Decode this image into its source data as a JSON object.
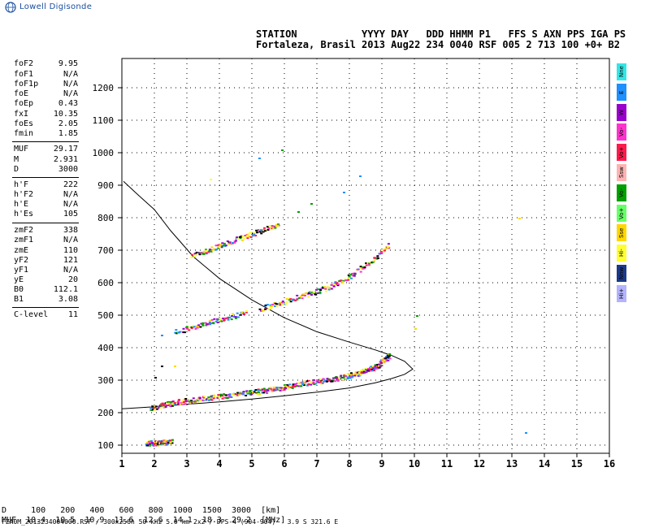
{
  "logo_text": "Lowell Digisonde",
  "header": {
    "labels": "STATION           YYYY DAY   DDD HHMM P1   FFS S AXN PPS IGA PS",
    "values": "Fortaleza, Brasil 2013 Aug22 234 0040 RSF 005 2 713 100 +0+ B2"
  },
  "params": [
    {
      "k": "foF2",
      "v": "9.95"
    },
    {
      "k": "foF1",
      "v": "N/A"
    },
    {
      "k": "foF1p",
      "v": "N/A"
    },
    {
      "k": "foE",
      "v": "N/A"
    },
    {
      "k": "foEp",
      "v": "0.43"
    },
    {
      "k": "fxI",
      "v": "10.35"
    },
    {
      "k": "foEs",
      "v": "2.05"
    },
    {
      "k": "fmin",
      "v": "1.85"
    },
    {
      "k": "MUF",
      "v": "29.17"
    },
    {
      "k": "M",
      "v": "2.931"
    },
    {
      "k": "D",
      "v": "3000"
    },
    {
      "k": "h'F",
      "v": "222"
    },
    {
      "k": "h'F2",
      "v": "N/A"
    },
    {
      "k": "h'E",
      "v": "N/A"
    },
    {
      "k": "h'Es",
      "v": "105"
    },
    {
      "k": "zmF2",
      "v": "338"
    },
    {
      "k": "zmF1",
      "v": "N/A"
    },
    {
      "k": "zmE",
      "v": "110"
    },
    {
      "k": "yF2",
      "v": "121"
    },
    {
      "k": "yF1",
      "v": "N/A"
    },
    {
      "k": "yE",
      "v": "20"
    },
    {
      "k": "B0",
      "v": "112.1"
    },
    {
      "k": "B1",
      "v": "3.08"
    },
    {
      "k": "C-level",
      "v": "11"
    }
  ],
  "legend": [
    {
      "label": "Nne",
      "color": "#33e6e6"
    },
    {
      "label": "E",
      "color": "#1e90ff"
    },
    {
      "label": "W",
      "color": "#9900cc"
    },
    {
      "label": "Vo-",
      "color": "#ff33cc"
    },
    {
      "label": "Vo+",
      "color": "#ff1a4d"
    },
    {
      "label": "Ssw",
      "color": "#ffb3b3"
    },
    {
      "label": "Vo-",
      "color": "#00a000"
    },
    {
      "label": "Vo+",
      "color": "#66ff66"
    },
    {
      "label": "Sse",
      "color": "#ffd700"
    },
    {
      "label": "Hi-",
      "color": "#ffff33"
    },
    {
      "label": "Nnw",
      "color": "#1a3a8a"
    },
    {
      "label": "Hi+",
      "color": "#b3b3ff"
    }
  ],
  "scale": {
    "line1": "D     100   200   400   600   800  1000  1500  3000  [km]",
    "line2": "MUF  10.4  10.5  10.9  11.6  12.6  14.1  18.3  29.2  [MHz]"
  },
  "footer": "FZA0M_2013234004000.RSF / 300x256h 50 kHz 5.0 km 2x2 / DPS-4 (904-904)   3.9 S 321.6 E",
  "chart_data": {
    "type": "scatter",
    "x_ticks": [
      1,
      2,
      3,
      4,
      5,
      6,
      7,
      8,
      9,
      10,
      11,
      12,
      13,
      14,
      15,
      16
    ],
    "y_ticks": [
      100,
      200,
      300,
      400,
      500,
      600,
      700,
      800,
      900,
      1000,
      1100,
      1200
    ],
    "xlim": [
      1,
      16
    ],
    "ylim": [
      75,
      1290
    ],
    "grid": true,
    "traces": [
      {
        "trace": "F-low",
        "points": [
          [
            1.8,
            215
          ],
          [
            2.5,
            232
          ],
          [
            3.5,
            245
          ],
          [
            4.5,
            258
          ],
          [
            5.5,
            272
          ],
          [
            6.5,
            290
          ],
          [
            7.5,
            305
          ],
          [
            8.2,
            322
          ],
          [
            8.8,
            345
          ],
          [
            9.2,
            380
          ]
        ]
      },
      {
        "trace": "F-high",
        "points": [
          [
            2.6,
            450
          ],
          [
            3.3,
            470
          ],
          [
            4.0,
            490
          ],
          [
            4.8,
            510
          ]
        ]
      },
      {
        "trace": "F2-3hop",
        "points": [
          [
            5.2,
            520
          ],
          [
            6.0,
            545
          ],
          [
            6.8,
            570
          ],
          [
            7.4,
            590
          ],
          [
            8.0,
            625
          ],
          [
            8.6,
            665
          ],
          [
            9.2,
            720
          ]
        ]
      },
      {
        "trace": "F2-2hop",
        "points": [
          [
            3.1,
            685
          ],
          [
            3.8,
            710
          ],
          [
            4.5,
            735
          ],
          [
            5.2,
            760
          ],
          [
            5.8,
            780
          ]
        ]
      },
      {
        "trace": "Es",
        "points": [
          [
            1.7,
            108
          ],
          [
            2.0,
            108
          ],
          [
            2.2,
            110
          ],
          [
            2.5,
            112
          ]
        ]
      },
      {
        "trace": "scattered",
        "points": [
          [
            2.0,
            310
          ],
          [
            2.2,
            345
          ],
          [
            2.6,
            345
          ],
          [
            2.2,
            440
          ],
          [
            3.7,
            920
          ],
          [
            5.2,
            985
          ],
          [
            5.9,
            1010
          ],
          [
            6.4,
            820
          ],
          [
            6.8,
            845
          ],
          [
            7.8,
            880
          ],
          [
            8.3,
            930
          ],
          [
            10.0,
            460
          ],
          [
            10.05,
            500
          ],
          [
            13.2,
            800
          ],
          [
            13.4,
            140
          ]
        ]
      }
    ],
    "profile": [
      [
        1.0,
        212
      ],
      [
        2.0,
        218
      ],
      [
        3.0,
        226
      ],
      [
        4.0,
        233
      ],
      [
        5.0,
        242
      ],
      [
        6.0,
        252
      ],
      [
        7.0,
        263
      ],
      [
        8.0,
        276
      ],
      [
        8.8,
        292
      ],
      [
        9.3,
        305
      ],
      [
        9.7,
        318
      ],
      [
        9.95,
        334
      ],
      [
        9.7,
        358
      ],
      [
        9.3,
        376
      ],
      [
        8.8,
        393
      ],
      [
        8.0,
        417
      ],
      [
        7.0,
        449
      ],
      [
        6.0,
        492
      ],
      [
        5.0,
        547
      ],
      [
        4.0,
        613
      ],
      [
        3.2,
        680
      ],
      [
        2.5,
        760
      ],
      [
        2.0,
        825
      ],
      [
        1.5,
        870
      ],
      [
        1.05,
        912
      ]
    ]
  }
}
